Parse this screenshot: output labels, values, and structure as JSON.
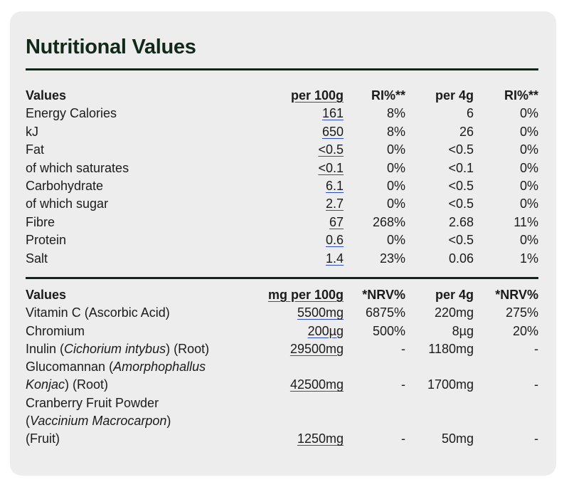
{
  "title": "Nutritional Values",
  "table1": {
    "headers": [
      "Values",
      "per 100g",
      "RI%**",
      "per 4g",
      "RI%**"
    ],
    "rows": [
      [
        "Energy Calories",
        "161",
        "8%",
        "6",
        "0%"
      ],
      [
        "kJ",
        "650",
        "8%",
        "26",
        "0%"
      ],
      [
        "Fat",
        "<0.5",
        "0%",
        "<0.5",
        "0%"
      ],
      [
        "of which saturates",
        "<0.1",
        "0%",
        "<0.1",
        "0%"
      ],
      [
        "Carbohydrate",
        "6.1",
        "0%",
        "<0.5",
        "0%"
      ],
      [
        "of which sugar",
        "2.7",
        "0%",
        "<0.5",
        "0%"
      ],
      [
        "Fibre",
        "67",
        "268%",
        "2.68",
        "11%"
      ],
      [
        "Protein",
        "0.6",
        "0%",
        "<0.5",
        "0%"
      ],
      [
        "Salt",
        "1.4",
        "23%",
        "0.06",
        "1%"
      ]
    ]
  },
  "table2": {
    "headers": [
      "Values",
      "mg per 100g",
      "*NRV%",
      "per 4g",
      "*NRV%"
    ],
    "rows": [
      {
        "pre": "Vitamin C (Ascorbic Acid)",
        "italic": "",
        "post": "",
        "per100": "5500mg",
        "nrv1": "6875%",
        "per4": "220mg",
        "nrv2": "275%"
      },
      {
        "pre": "Chromium",
        "italic": "",
        "post": "",
        "per100": "200µg",
        "nrv1": "500%",
        "per4": "8µg",
        "nrv2": "20%"
      },
      {
        "pre": "Inulin (",
        "italic": "Cichorium intybus",
        "post": ") (Root)",
        "per100": "29500mg",
        "nrv1": "-",
        "per4": "1180mg",
        "nrv2": "-"
      }
    ],
    "glucomannan": {
      "line1_pre": "Glucomannan (",
      "line1_italic": "Amorphophallus",
      "line2_italic": "Konjac",
      "line2_post": ") (Root)",
      "per100": "42500mg",
      "nrv1": "-",
      "per4": "1700mg",
      "nrv2": "-"
    },
    "cranberry": {
      "line1": "Cranberry Fruit Powder",
      "line2_pre": "(",
      "line2_italic": "Vaccinium Macrocarpon",
      "line2_post": ")",
      "line3": "(Fruit)",
      "per100": "1250mg",
      "nrv1": "-",
      "per4": "50mg",
      "nrv2": "-"
    }
  }
}
